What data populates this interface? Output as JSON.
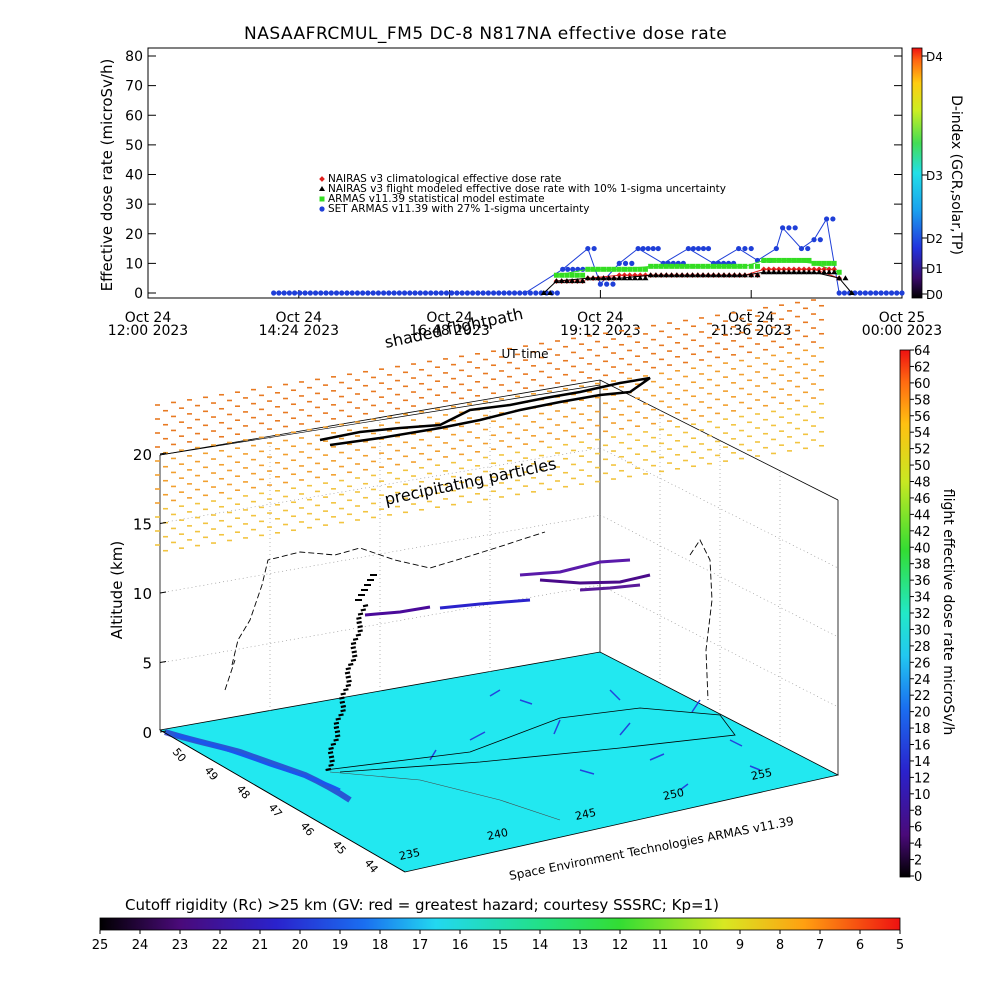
{
  "top_chart": {
    "title": "NASAAFRCMUL_FM5 DC-8   N817NA effective dose rate",
    "ylabel": "Effective dose rate (microSv/h)",
    "xlabel": "UT time",
    "right_label": "D-index (GCR,solar,TP)",
    "y_ticks": [
      "0",
      "10",
      "20",
      "30",
      "40",
      "50",
      "60",
      "70",
      "80"
    ],
    "x_ticks": [
      {
        "l1": "Oct 24",
        "l2": "12:00 2023"
      },
      {
        "l1": "Oct 24",
        "l2": "14:24 2023"
      },
      {
        "l1": "Oct 24",
        "l2": "16:48 2023"
      },
      {
        "l1": "Oct 24",
        "l2": "19:12 2023"
      },
      {
        "l1": "Oct 24",
        "l2": "21:36 2023"
      },
      {
        "l1": "Oct 25",
        "l2": "00:00 2023"
      }
    ],
    "d_ticks": [
      "D0",
      "D1",
      "D2",
      "D3",
      "D4"
    ],
    "legend": [
      {
        "label": "NAIRAS v3 climatological effective dose rate",
        "color": "#e0201c",
        "marker": "diamond"
      },
      {
        "label": "NAIRAS v3 flight modeled effective dose rate with 10% 1-sigma uncertainty",
        "color": "#000000",
        "marker": "triangle"
      },
      {
        "label": "ARMAS v11.39 statistical model estimate",
        "color": "#33dd22",
        "marker": "star"
      },
      {
        "label": "SET ARMAS v11.39 with 27% 1-sigma uncertainty",
        "color": "#1f3fd8",
        "marker": "circle"
      }
    ]
  },
  "chart_data": {
    "type": "scatter",
    "title": "NASAAFRCMUL_FM5 DC-8   N817NA effective dose rate",
    "xlabel": "UT time",
    "ylabel": "Effective dose rate (microSv/h)",
    "ylim": [
      0,
      80
    ],
    "xlim_hours": [
      0,
      12
    ],
    "x_unit": "hours since Oct 24 12:00 2023",
    "series": [
      {
        "name": "SET ARMAS v11.39 with 27% 1-sigma uncertainty",
        "x": [
          2.0,
          3.0,
          4.0,
          5.0,
          6.0,
          6.6,
          7.0,
          7.2,
          7.5,
          7.8,
          8.2,
          8.6,
          9.0,
          9.4,
          9.7,
          10.0,
          10.1,
          10.4,
          10.6,
          10.8,
          11.0,
          11.5,
          12.0
        ],
        "y": [
          0,
          0,
          0,
          0,
          0,
          8,
          15,
          3,
          10,
          15,
          10,
          15,
          10,
          15,
          11,
          15,
          22,
          15,
          18,
          25,
          0,
          0,
          0
        ]
      },
      {
        "name": "ARMAS v11.39 statistical model estimate",
        "x": [
          6.5,
          7.0,
          7.5,
          8.0,
          8.5,
          9.0,
          9.5,
          9.8,
          10.2,
          10.6,
          11.0
        ],
        "y": [
          6,
          8,
          8,
          9,
          9,
          9,
          9,
          11,
          11,
          10,
          7
        ]
      },
      {
        "name": "NAIRAS v3 climatological effective dose rate",
        "x": [
          6.5,
          7.0,
          7.5,
          8.0,
          8.5,
          9.0,
          9.5,
          9.8,
          10.2,
          10.6,
          11.0
        ],
        "y": [
          4,
          5,
          6,
          6,
          6,
          6,
          6,
          8,
          8,
          8,
          5
        ]
      },
      {
        "name": "NAIRAS v3 flight modeled effective dose rate with 10% 1-sigma uncertainty",
        "x": [
          6.3,
          6.5,
          7.0,
          7.5,
          8.0,
          8.5,
          9.0,
          9.5,
          9.8,
          10.2,
          10.6,
          11.0,
          11.2
        ],
        "y": [
          0,
          4,
          5,
          5,
          6,
          6,
          6,
          6,
          7,
          7,
          7,
          5,
          0
        ]
      }
    ]
  },
  "plot3d": {
    "shade_label": "shaded flightpath",
    "particles_label": "precipitating particles",
    "z_label": "Altitude (km)",
    "z_ticks": [
      "0",
      "5",
      "10",
      "15",
      "20"
    ],
    "lat_ticks": [
      "50",
      "49",
      "48",
      "47",
      "46",
      "45",
      "44"
    ],
    "lon_ticks": [
      "235",
      "240",
      "245",
      "250",
      "255"
    ],
    "credit": "Space Environment Technologies ARMAS v11.39"
  },
  "right_colorbar": {
    "label": "flight effective dose rate microSv/h",
    "ticks": [
      "0",
      "2",
      "4",
      "6",
      "8",
      "10",
      "12",
      "14",
      "16",
      "18",
      "20",
      "22",
      "24",
      "26",
      "28",
      "30",
      "32",
      "34",
      "36",
      "38",
      "40",
      "42",
      "44",
      "46",
      "48",
      "50",
      "52",
      "54",
      "56",
      "58",
      "60",
      "62",
      "64"
    ]
  },
  "bottom_colorbar": {
    "caption": "Cutoff rigidity (Rc) >25 km (GV: red = greatest hazard; courtesy SSSRC; Kp=1)",
    "ticks": [
      "25",
      "24",
      "23",
      "22",
      "21",
      "20",
      "19",
      "18",
      "17",
      "16",
      "15",
      "14",
      "13",
      "12",
      "11",
      "10",
      "9",
      "8",
      "7",
      "6",
      "5"
    ]
  }
}
